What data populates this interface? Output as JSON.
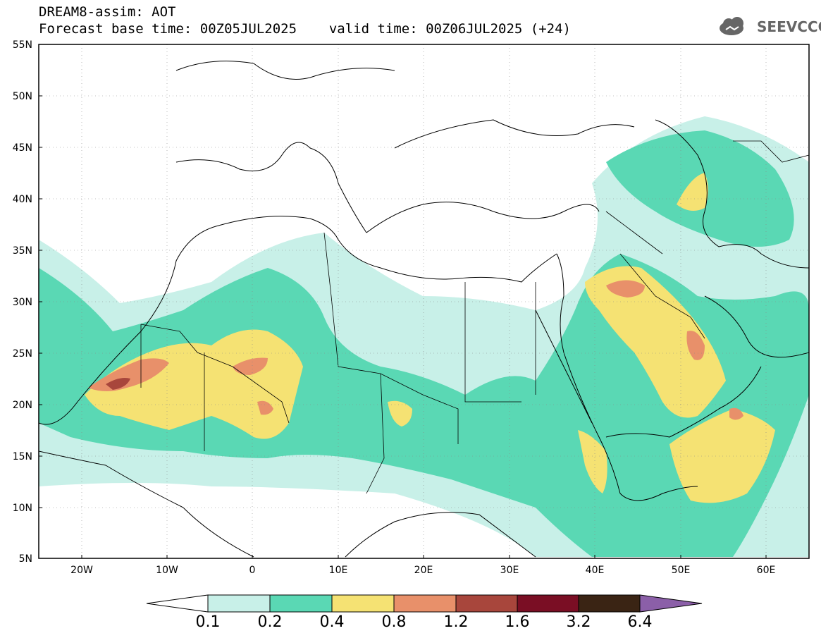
{
  "title": {
    "line1": "DREAM8-assim: AOT",
    "line2_base": "Forecast base time: 00Z05JUL2025",
    "line2_valid": "valid time: 00Z06JUL2025 (+24)"
  },
  "logo": {
    "text": "SEEVCCC",
    "icon": "cloud-icon"
  },
  "map": {
    "variable": "Aerosol optical thickness",
    "lat_labels": [
      "55N",
      "50N",
      "45N",
      "40N",
      "35N",
      "30N",
      "25N",
      "20N",
      "15N",
      "10N",
      "5N"
    ],
    "lon_labels": [
      "20W",
      "10W",
      "0",
      "10E",
      "20E",
      "30E",
      "40E",
      "50E",
      "60E"
    ],
    "lon_range": [
      -25,
      65
    ],
    "lat_range": [
      5,
      55
    ]
  },
  "colorbar": {
    "levels": [
      "0.1",
      "0.2",
      "0.4",
      "0.8",
      "1.2",
      "1.6",
      "3.2",
      "6.4"
    ],
    "colors": [
      "#c8f0e8",
      "#5ad8b4",
      "#f5e273",
      "#e8906a",
      "#a8463c",
      "#7a0e24",
      "#3a2414",
      "#8b5fa8"
    ],
    "under_color": "#ffffff"
  }
}
